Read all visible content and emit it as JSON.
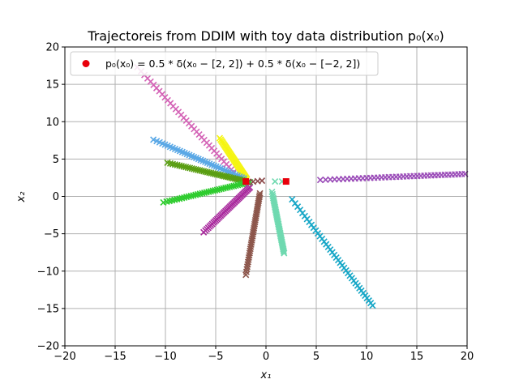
{
  "chart_data": {
    "type": "scatter",
    "title": "Trajectoreis from DDIM with toy data distribution p₀(x₀)",
    "xlabel": "x₁",
    "ylabel": "x₂",
    "xlim": [
      -20,
      20
    ],
    "ylim": [
      -20,
      20
    ],
    "xticks": [
      -20,
      -15,
      -10,
      -5,
      0,
      5,
      10,
      15,
      20
    ],
    "yticks": [
      -20,
      -15,
      -10,
      -5,
      0,
      5,
      10,
      15,
      20
    ],
    "xtick_labels": [
      "−20",
      "−15",
      "−10",
      "−5",
      "0",
      "5",
      "10",
      "15",
      "20"
    ],
    "ytick_labels": [
      "−20",
      "−15",
      "−10",
      "−5",
      "0",
      "5",
      "10",
      "15",
      "20"
    ],
    "grid": true,
    "legend": {
      "location": "top-left",
      "label": "p₀(x₀) = 0.5 * δ(x₀ − [2, 2]) + 0.5 * δ(x₀ − [−2, 2])",
      "marker_color": "#e8000b"
    },
    "data_points": {
      "name": "data modes",
      "color": "#e8000b",
      "marker": "square",
      "points": [
        [
          -2,
          2
        ],
        [
          2,
          2
        ]
      ]
    },
    "trajectories": [
      {
        "name": "pink",
        "color": "#d463b6",
        "start": [
          -12.8,
          17.3
        ],
        "end": [
          -2.5,
          2.2
        ],
        "count": 40
      },
      {
        "name": "yellow",
        "color": "#f5f511",
        "start": [
          -4.6,
          7.8
        ],
        "end": [
          -1.9,
          2.3
        ],
        "count": 40
      },
      {
        "name": "light blue",
        "color": "#5aa8e6",
        "start": [
          -11.2,
          7.6
        ],
        "end": [
          -2.2,
          2.4
        ],
        "count": 40
      },
      {
        "name": "olive green",
        "color": "#5a9e12",
        "start": [
          -9.8,
          4.5
        ],
        "end": [
          -2.2,
          2.1
        ],
        "count": 40
      },
      {
        "name": "green",
        "color": "#2ecc2e",
        "start": [
          -10.2,
          -0.8
        ],
        "end": [
          -1.6,
          1.9
        ],
        "count": 40
      },
      {
        "name": "magenta",
        "color": "#a8289c",
        "start": [
          -6.2,
          -4.8
        ],
        "end": [
          -1.6,
          1.2
        ],
        "count": 40
      },
      {
        "name": "brown",
        "color": "#8c564b",
        "start": [
          -2.0,
          -10.5
        ],
        "end": [
          -0.6,
          0.4
        ],
        "count": 40
      },
      {
        "name": "dark brown",
        "color": "#8c4a4a",
        "start": [
          -1.8,
          1.9
        ],
        "end": [
          -0.4,
          2.1
        ],
        "count": 4
      },
      {
        "name": "aquamarine",
        "color": "#6fd9b0",
        "start": [
          0.6,
          0.6
        ],
        "end": [
          1.8,
          -7.6
        ],
        "count": 40
      },
      {
        "name": "aquamarine near mode",
        "color": "#6fd9b0",
        "start": [
          0.9,
          2.0
        ],
        "end": [
          1.6,
          2.0
        ],
        "count": 2
      },
      {
        "name": "cyan",
        "color": "#17a7c7",
        "start": [
          2.6,
          -0.4
        ],
        "end": [
          10.6,
          -14.6
        ],
        "count": 40
      },
      {
        "name": "purple",
        "color": "#9a4bb8",
        "start": [
          5.4,
          2.2
        ],
        "end": [
          19.8,
          3.0
        ],
        "count": 40
      }
    ]
  }
}
